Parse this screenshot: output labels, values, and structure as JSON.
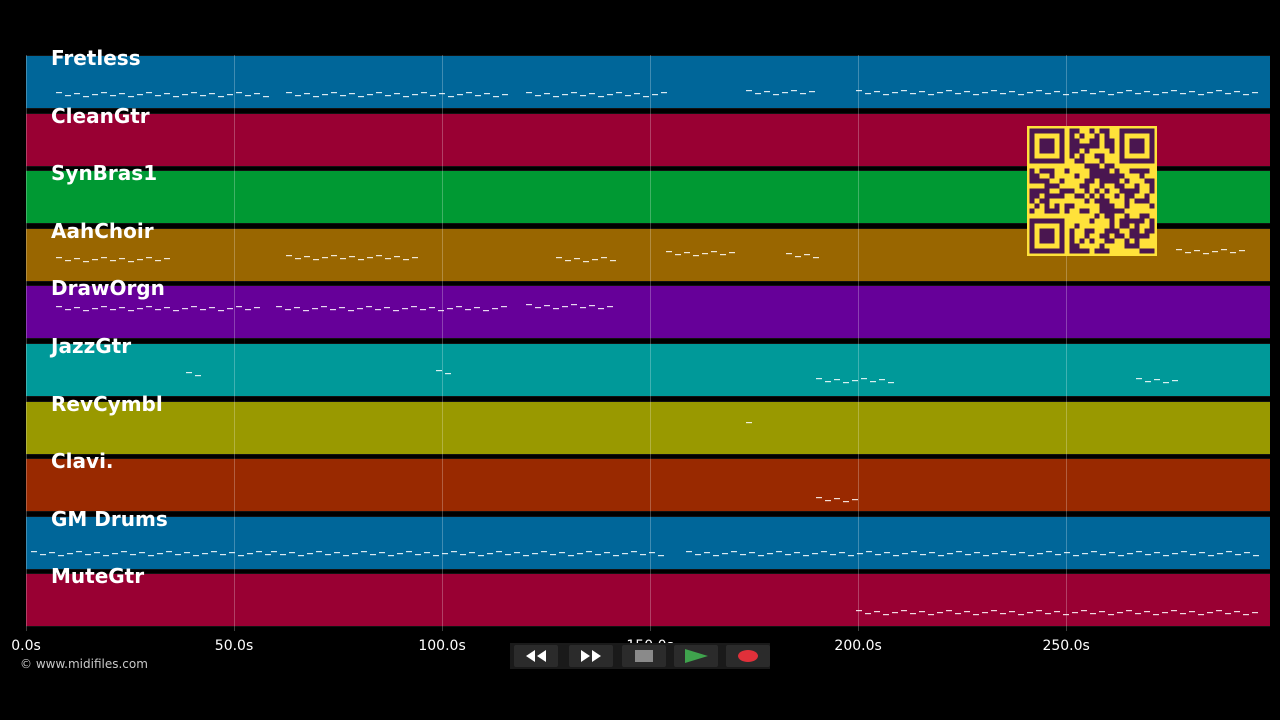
{
  "tracks": [
    {
      "name": "Fretless",
      "color": "#006699"
    },
    {
      "name": "CleanGtr",
      "color": "#990033"
    },
    {
      "name": "SynBras1",
      "color": "#009933"
    },
    {
      "name": "AahChoir",
      "color": "#996600"
    },
    {
      "name": "DrawOrgn",
      "color": "#660099"
    },
    {
      "name": "JazzGtr",
      "color": "#009999"
    },
    {
      "name": "RevCymbl",
      "color": "#999900"
    },
    {
      "name": "Clavi.",
      "color": "#992900"
    },
    {
      "name": "GM Drums",
      "color": "#006699"
    },
    {
      "name": "MuteGtr",
      "color": "#990033"
    }
  ],
  "timeline": {
    "ticks": [
      "0.0s",
      "50.0s",
      "100.0s",
      "150.0s",
      "200.0s",
      "250.0s"
    ],
    "tick_seconds": [
      0,
      50,
      100,
      150,
      200,
      250
    ],
    "max_seconds": 299
  },
  "copyright": "© www.midifiles.com",
  "transport": {
    "rewind_icon": "rewind-icon",
    "fast_forward_icon": "fast-forward-icon",
    "stop_icon": "stop-icon",
    "play_icon": "play-icon",
    "record_icon": "record-icon",
    "play_color": "#3fa34d",
    "record_color": "#e0303a"
  },
  "qr_code": {
    "color": "#ffe23a",
    "module_color": "#4a1650"
  }
}
